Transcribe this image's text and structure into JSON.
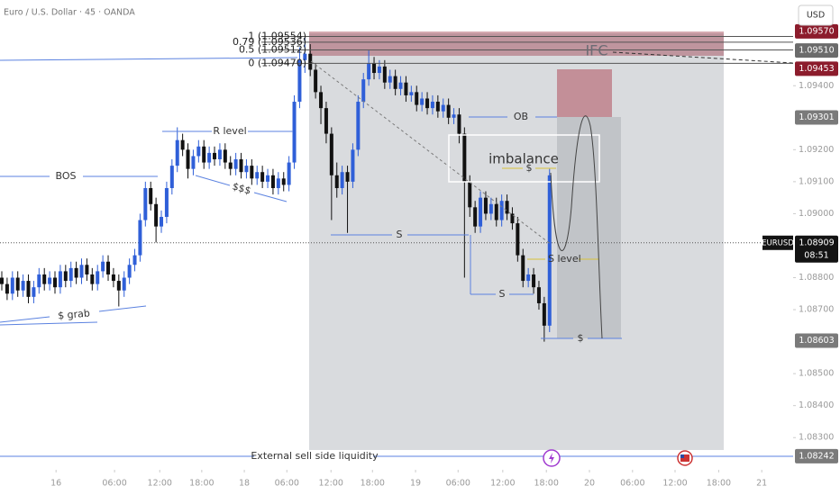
{
  "chart_data": {
    "type": "candlestick",
    "title": "Euro / U.S. Dollar · 45 · OANDA",
    "symbol": "EURUSD",
    "countdown": "08:51",
    "currency": "USD",
    "up_color": "#2f5fd8",
    "down_color": "#111111",
    "open": [
      1.088,
      1.0878,
      1.0875,
      1.088,
      1.0876,
      1.0879,
      1.0874,
      1.0877,
      1.0881,
      1.0878,
      1.088,
      1.0877,
      1.0882,
      1.0879,
      1.0883,
      1.088,
      1.0884,
      1.0881,
      1.0878,
      1.0882,
      1.0885,
      1.0881,
      1.0879,
      1.0876,
      1.088,
      1.0884,
      1.0887,
      1.0898,
      1.0908,
      1.0903,
      1.0896,
      1.0899,
      1.0908,
      1.0915,
      1.0923,
      1.092,
      1.0914,
      1.0918,
      1.0921,
      1.0916,
      1.0919,
      1.0917,
      1.092,
      1.0916,
      1.0914,
      1.0917,
      1.0913,
      1.0915,
      1.0911,
      1.0913,
      1.091,
      1.0912,
      1.0908,
      1.0911,
      1.0909,
      1.0916,
      1.0935,
      1.0948,
      1.095,
      1.0945,
      1.0938,
      1.0933,
      1.0925,
      1.0912,
      1.0908,
      1.0913,
      1.091,
      1.092,
      1.0935,
      1.0942,
      1.0947,
      1.0944,
      1.0946,
      1.0941,
      1.0943,
      1.0939,
      1.0941,
      1.0937,
      1.0938,
      1.0934,
      1.0936,
      1.0933,
      1.0935,
      1.0932,
      1.0934,
      1.093,
      1.0931,
      1.0925,
      1.091,
      1.0902,
      1.0896,
      1.0905,
      1.09,
      1.0903,
      1.0898,
      1.0904,
      1.09,
      1.0897,
      1.0887,
      1.0879,
      1.0881,
      1.0877,
      1.0872,
      1.0865
    ],
    "high": [
      1.0882,
      1.088,
      1.0882,
      1.0882,
      1.0881,
      1.0881,
      1.0879,
      1.0883,
      1.0883,
      1.0882,
      1.0882,
      1.0884,
      1.0884,
      1.0885,
      1.0885,
      1.0886,
      1.0886,
      1.0883,
      1.0884,
      1.0887,
      1.0887,
      1.0883,
      1.0881,
      1.0882,
      1.0886,
      1.0889,
      1.09,
      1.091,
      1.091,
      1.0905,
      1.0901,
      1.091,
      1.0917,
      1.0927,
      1.0925,
      1.0922,
      1.092,
      1.0923,
      1.0923,
      1.0921,
      1.0921,
      1.0922,
      1.0922,
      1.0918,
      1.0919,
      1.0919,
      1.0917,
      1.0917,
      1.0915,
      1.0915,
      1.0914,
      1.0914,
      1.0913,
      1.0913,
      1.0918,
      1.0937,
      1.0952,
      1.0955,
      1.0953,
      1.0947,
      1.094,
      1.0935,
      1.0927,
      1.0916,
      1.0915,
      1.0915,
      1.0922,
      1.0937,
      1.0944,
      1.0951,
      1.0949,
      1.0948,
      1.0948,
      1.0945,
      1.0945,
      1.0943,
      1.0943,
      1.094,
      1.094,
      1.0938,
      1.0938,
      1.0937,
      1.0937,
      1.0936,
      1.0936,
      1.0933,
      1.0933,
      1.0927,
      1.0912,
      1.0904,
      1.0907,
      1.0907,
      1.0905,
      1.0905,
      1.0906,
      1.0906,
      1.0902,
      1.0899,
      1.0889,
      1.0883,
      1.0883,
      1.0879,
      1.0874,
      1.0914
    ],
    "low": [
      1.0876,
      1.0873,
      1.0873,
      1.0874,
      1.0874,
      1.0872,
      1.0872,
      1.0875,
      1.0876,
      1.0876,
      1.0875,
      1.0875,
      1.0877,
      1.0877,
      1.0878,
      1.0878,
      1.0879,
      1.0876,
      1.0876,
      1.088,
      1.0879,
      1.0877,
      1.0871,
      1.0874,
      1.0878,
      1.0882,
      1.0885,
      1.0896,
      1.0901,
      1.0891,
      1.0894,
      1.0897,
      1.0906,
      1.0913,
      1.0918,
      1.0911,
      1.0912,
      1.0916,
      1.0914,
      1.0914,
      1.0915,
      1.0915,
      1.0914,
      1.0912,
      1.0912,
      1.0911,
      1.0911,
      1.0909,
      1.0909,
      1.0908,
      1.0908,
      1.0906,
      1.0906,
      1.0907,
      1.0907,
      1.0914,
      1.0933,
      1.0944,
      1.0943,
      1.0936,
      1.0928,
      1.0922,
      1.0898,
      1.0905,
      1.0906,
      1.0894,
      1.0908,
      1.0918,
      1.0933,
      1.094,
      1.0942,
      1.0942,
      1.0939,
      1.0939,
      1.0937,
      1.0937,
      1.0935,
      1.0935,
      1.0932,
      1.0932,
      1.0931,
      1.0931,
      1.093,
      1.093,
      1.0928,
      1.0928,
      1.0922,
      1.088,
      1.0899,
      1.0894,
      1.0894,
      1.0898,
      1.0898,
      1.0896,
      1.0896,
      1.0898,
      1.0895,
      1.0885,
      1.0877,
      1.0877,
      1.0875,
      1.087,
      1.086,
      1.0863
    ],
    "close": [
      1.0878,
      1.0875,
      1.088,
      1.0876,
      1.0879,
      1.0874,
      1.0877,
      1.0881,
      1.0878,
      1.088,
      1.0877,
      1.0882,
      1.0879,
      1.0883,
      1.088,
      1.0884,
      1.0881,
      1.0878,
      1.0882,
      1.0885,
      1.0881,
      1.0879,
      1.0876,
      1.088,
      1.0884,
      1.0887,
      1.0898,
      1.0908,
      1.0903,
      1.0896,
      1.0899,
      1.0908,
      1.0915,
      1.0923,
      1.092,
      1.0914,
      1.0918,
      1.0921,
      1.0916,
      1.0919,
      1.0917,
      1.092,
      1.0916,
      1.0914,
      1.0917,
      1.0913,
      1.0915,
      1.0911,
      1.0913,
      1.091,
      1.0912,
      1.0908,
      1.0911,
      1.0909,
      1.0916,
      1.0935,
      1.0948,
      1.095,
      1.0945,
      1.0938,
      1.0933,
      1.0925,
      1.0912,
      1.0908,
      1.0913,
      1.091,
      1.092,
      1.0935,
      1.0942,
      1.0947,
      1.0944,
      1.0946,
      1.0941,
      1.0943,
      1.0939,
      1.0941,
      1.0937,
      1.0938,
      1.0934,
      1.0936,
      1.0933,
      1.0935,
      1.0932,
      1.0934,
      1.093,
      1.0931,
      1.0925,
      1.091,
      1.0902,
      1.0896,
      1.0905,
      1.09,
      1.0903,
      1.0898,
      1.0904,
      1.09,
      1.0897,
      1.0887,
      1.0879,
      1.0881,
      1.0877,
      1.0872,
      1.0865,
      1.0912
    ],
    "xlim": [
      -0.34,
      148.8
    ],
    "ylim": [
      1.08205,
      1.09668
    ],
    "xticks": [
      {
        "value": 10.2,
        "label": "16"
      },
      {
        "value": 21.2,
        "label": "06:00"
      },
      {
        "value": 29.7,
        "label": "12:00"
      },
      {
        "value": 37.6,
        "label": "18:00"
      },
      {
        "value": 45.6,
        "label": "18"
      },
      {
        "value": 53.6,
        "label": "06:00"
      },
      {
        "value": 61.9,
        "label": "12:00"
      },
      {
        "value": 69.7,
        "label": "18:00"
      },
      {
        "value": 77.8,
        "label": "19"
      },
      {
        "value": 85.8,
        "label": "06:00"
      },
      {
        "value": 94.2,
        "label": "12:00"
      },
      {
        "value": 102.4,
        "label": "18:00"
      },
      {
        "value": 110.5,
        "label": "20"
      },
      {
        "value": 118.6,
        "label": "06:00"
      },
      {
        "value": 126.6,
        "label": "12:00"
      },
      {
        "value": 134.8,
        "label": "18:00"
      },
      {
        "value": 142.9,
        "label": "21"
      }
    ],
    "yticks": [
      {
        "value": 1.094,
        "label": "1.09400"
      },
      {
        "value": 1.092,
        "label": "1.09200"
      },
      {
        "value": 1.091,
        "label": "1.09100"
      },
      {
        "value": 1.09,
        "label": "1.09000"
      },
      {
        "value": 1.088,
        "label": "1.08800"
      },
      {
        "value": 1.087,
        "label": "1.08700"
      },
      {
        "value": 1.085,
        "label": "1.08500"
      },
      {
        "value": 1.084,
        "label": "1.08400"
      },
      {
        "value": 1.083,
        "label": "1.08300"
      }
    ],
    "price_labels": [
      {
        "value": 1.0957,
        "label": "1.09570",
        "color": "#8c1c2c"
      },
      {
        "value": 1.0951,
        "label": "1.09510",
        "color": "#6b6b6b"
      },
      {
        "value": 1.09453,
        "label": "1.09453",
        "color": "#8c1c2c"
      },
      {
        "value": 1.09301,
        "label": "1.09301",
        "color": "#7a7a7a"
      },
      {
        "value": 1.08909,
        "label": "1.08909",
        "color": "#131313"
      },
      {
        "value": 1.08603,
        "label": "1.08603",
        "color": "#7a7a7a"
      },
      {
        "value": 1.08242,
        "label": "1.08242",
        "color": "#7a7a7a"
      }
    ],
    "fib": [
      {
        "value": 1.09554,
        "label": "1 (1.09554)"
      },
      {
        "value": 1.09536,
        "label": "0.79 (1.09536)"
      },
      {
        "value": 1.09512,
        "label": "0.5 (1.09512)"
      },
      {
        "value": 1.0947,
        "label": "0 (1.09470)"
      }
    ],
    "annotations": {
      "bos": "BOS",
      "r_level": "R level",
      "sss": "$$$",
      "s_grab": "$ grab",
      "s1": "S",
      "s2": "S",
      "ob": "OB",
      "imbalance": "imbalance",
      "dollar": "$",
      "s_level": "S level",
      "s3": "$",
      "ifc": "IFC",
      "external": "External sell side liquidity"
    }
  }
}
